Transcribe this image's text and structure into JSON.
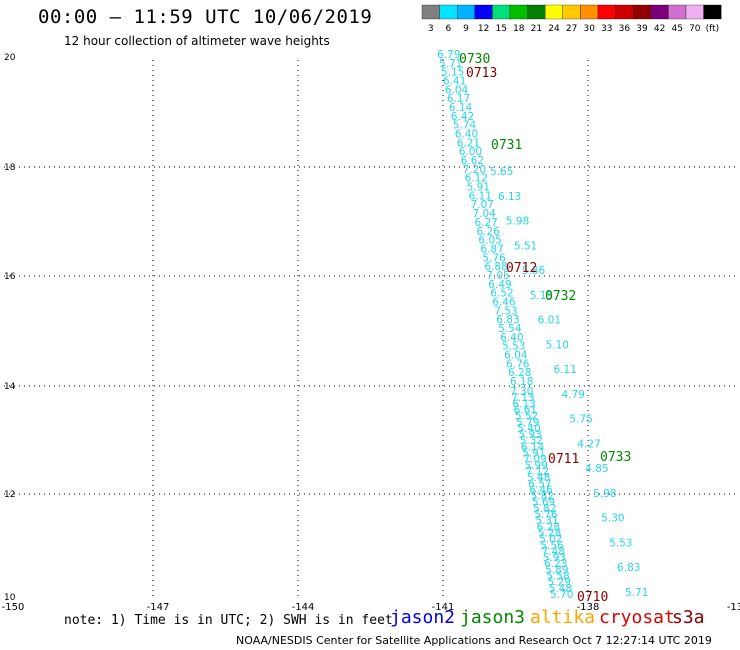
{
  "title": "00:00 – 11:59 UTC 10/06/2019",
  "subtitle": "12 hour collection of altimeter wave heights",
  "colors": {
    "cyan": "#25d6e8",
    "green": "#008800",
    "maroon": "#8b0000",
    "blue": "#0000ee",
    "orange": "#ffa500",
    "red": "#dd0000",
    "grid": "#000000"
  },
  "legend": {
    "labels": [
      "3",
      "6",
      "9",
      "12",
      "15",
      "18",
      "21",
      "24",
      "27",
      "30",
      "33",
      "36",
      "39",
      "42",
      "45",
      "70",
      "(ft)"
    ],
    "colors": [
      "#808080",
      "#00e5ff",
      "#00b2ff",
      "#0000ff",
      "#00e07a",
      "#00c000",
      "#008000",
      "#ffff00",
      "#ffc800",
      "#ff9000",
      "#ff0000",
      "#d00000",
      "#900000",
      "#7a007a",
      "#d070d0",
      "#f0b0f0",
      "#000000"
    ]
  },
  "axes": {
    "x_ticks": [
      "-150",
      "-147",
      "-144",
      "-141",
      "-138",
      "-13"
    ],
    "y_ticks": [
      "20",
      "18",
      "16",
      "14",
      "12",
      "10"
    ]
  },
  "tracks": [
    {
      "values": [
        "6.79",
        "5.71",
        "5.15",
        "6.41",
        "6.04",
        "6.17",
        "6.14",
        "6.42",
        "5.74",
        "6.40",
        "6.21",
        "6.00",
        "6.62",
        "7.20",
        "6.12",
        "5.91",
        "6.11",
        "7.07",
        "7.04",
        "6.27",
        "6.26",
        "6.05",
        "6.87",
        "5.76",
        "6.88",
        "7.05",
        "6.49",
        "6.52",
        "6.46",
        "7.53",
        "6.83",
        "5.54",
        "6.40",
        "5.53",
        "6.04",
        "6.76",
        "6.28",
        "6.18",
        "7.30",
        "7.13",
        "6.13",
        "6.61",
        "5.52",
        "5.79",
        "5.40",
        "5.93",
        "5.32",
        "6.14",
        "5.91",
        "7.09",
        "5.99",
        "7.12",
        "5.48",
        "6.57",
        "6.46",
        "5.82",
        "5.69",
        "5.82",
        "5.76",
        "5.31",
        "6.28",
        "5.28",
        "5.02",
        "5.56",
        "7.48",
        "5.93",
        "6.23",
        "5.89",
        "5.58",
        "5.29",
        "5.48",
        "5.70",
        "5.65",
        "6.13",
        "5.98",
        "5.51",
        "5.86",
        "5.15",
        "6.01",
        "5.10",
        "6.11",
        "4.79",
        "5.75",
        "4.27",
        "4.85",
        "5.98",
        "5.30",
        "5.53",
        "6.83",
        "5.71"
      ]
    }
  ],
  "passes": [
    {
      "label": "0730",
      "color": "green"
    },
    {
      "label": "0713",
      "color": "maroon"
    },
    {
      "label": "0731",
      "color": "green"
    },
    {
      "label": "0712",
      "color": "maroon"
    },
    {
      "label": "0732",
      "color": "green"
    },
    {
      "label": "0711",
      "color": "maroon"
    },
    {
      "label": "0733",
      "color": "green"
    },
    {
      "label": "0710",
      "color": "maroon"
    }
  ],
  "note": "note: 1) Time is in UTC; 2) SWH is in feet",
  "satellites": [
    {
      "label": "jason2",
      "color": "blue"
    },
    {
      "label": "jason3",
      "color": "green"
    },
    {
      "label": "altika",
      "color": "orange"
    },
    {
      "label": "cryosat",
      "color": "red"
    },
    {
      "label": "s3a",
      "color": "maroon"
    }
  ],
  "footer": "NOAA/NESDIS Center for Satellite Applications and Research   Oct  7 12:27:14 UTC 2019"
}
